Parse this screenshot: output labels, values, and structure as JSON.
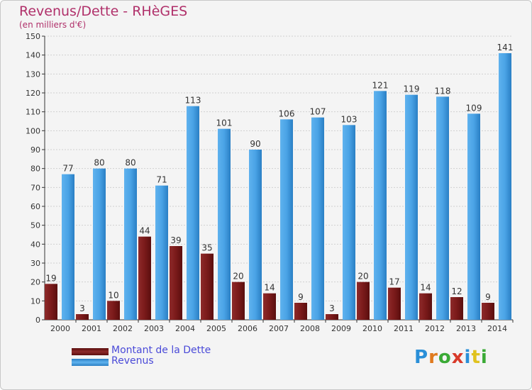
{
  "title": "Revenus/Dette - RHèGES",
  "subtitle": "(en milliers d'€)",
  "logo": {
    "letters": [
      "P",
      "r",
      "o",
      "x",
      "i",
      "t",
      "i"
    ],
    "colors": [
      "#2a8fd8",
      "#e07a1e",
      "#3aaa35",
      "#d83a2a",
      "#2a8fd8",
      "#e0c21e",
      "#3aaa35"
    ]
  },
  "colors": {
    "dette": "#7a1a1a",
    "revenus": "#3a96dc",
    "title": "#b0306a",
    "legend_text": "#4a4ad8"
  },
  "chart_data": {
    "type": "bar",
    "title": "Revenus/Dette - RHèGES",
    "subtitle": "(en milliers d'€)",
    "categories": [
      "2000",
      "2001",
      "2002",
      "2003",
      "2004",
      "2005",
      "2006",
      "2007",
      "2008",
      "2009",
      "2010",
      "2011",
      "2012",
      "2013",
      "2014"
    ],
    "series": [
      {
        "name": "Montant de la Dette",
        "color": "#7a1a1a",
        "values": [
          19,
          3,
          10,
          44,
          39,
          35,
          20,
          14,
          9,
          3,
          20,
          17,
          14,
          12,
          9
        ]
      },
      {
        "name": "Revenus",
        "color": "#3a96dc",
        "values": [
          77,
          80,
          80,
          71,
          113,
          101,
          90,
          106,
          107,
          103,
          121,
          119,
          118,
          109,
          141
        ]
      }
    ],
    "yticks": [
      0,
      10,
      20,
      30,
      40,
      50,
      60,
      70,
      80,
      90,
      100,
      110,
      120,
      130,
      140,
      150
    ],
    "ylim": [
      0,
      150
    ],
    "xlabel": "",
    "ylabel": "",
    "grid": true,
    "legend": "bottom-left"
  }
}
